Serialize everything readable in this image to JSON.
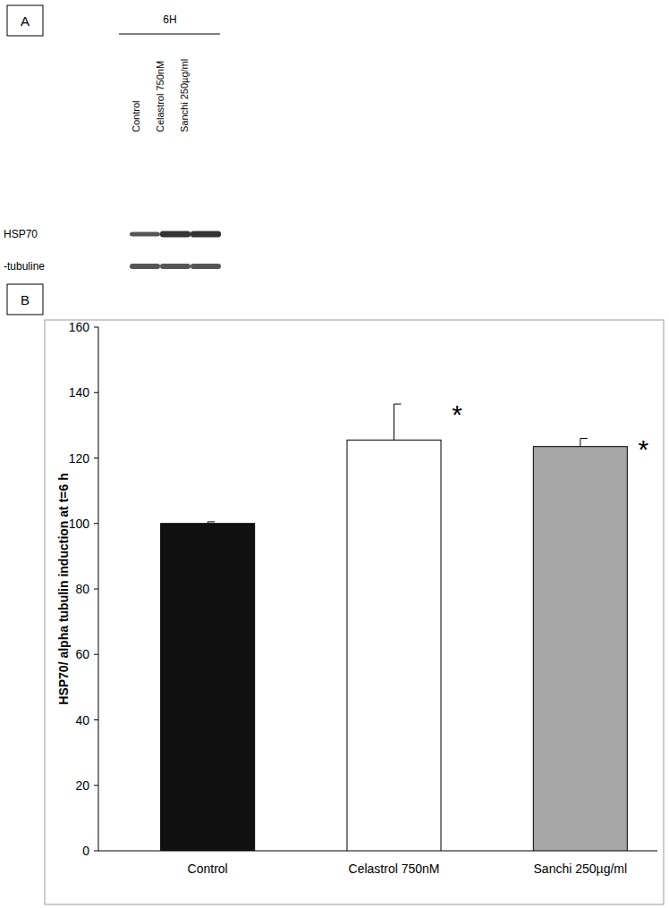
{
  "blot": {
    "panel": "A",
    "time": "6H",
    "lanes": [
      "Control",
      "Celastrol 750nM",
      "Sanchi 250µg/ml"
    ],
    "rows": [
      "HSP70",
      "-tubuline"
    ]
  },
  "chart_data": {
    "type": "bar",
    "panel": "B",
    "y_label": "HSP70/ alpha tubulin induction at t=6 h",
    "categories": [
      "Control",
      "Celastrol 750nM",
      "Sanchi 250µg/ml"
    ],
    "values": [
      100,
      125.5,
      123.5
    ],
    "errors": [
      0.5,
      11,
      2.5
    ],
    "significance": [
      null,
      "*",
      "*"
    ],
    "colors": [
      "#111111",
      "#ffffff",
      "#a6a6a6"
    ],
    "ylim": [
      0,
      160
    ],
    "yticks": [
      0,
      20,
      40,
      60,
      80,
      100,
      120,
      140,
      160
    ],
    "grid": false
  }
}
